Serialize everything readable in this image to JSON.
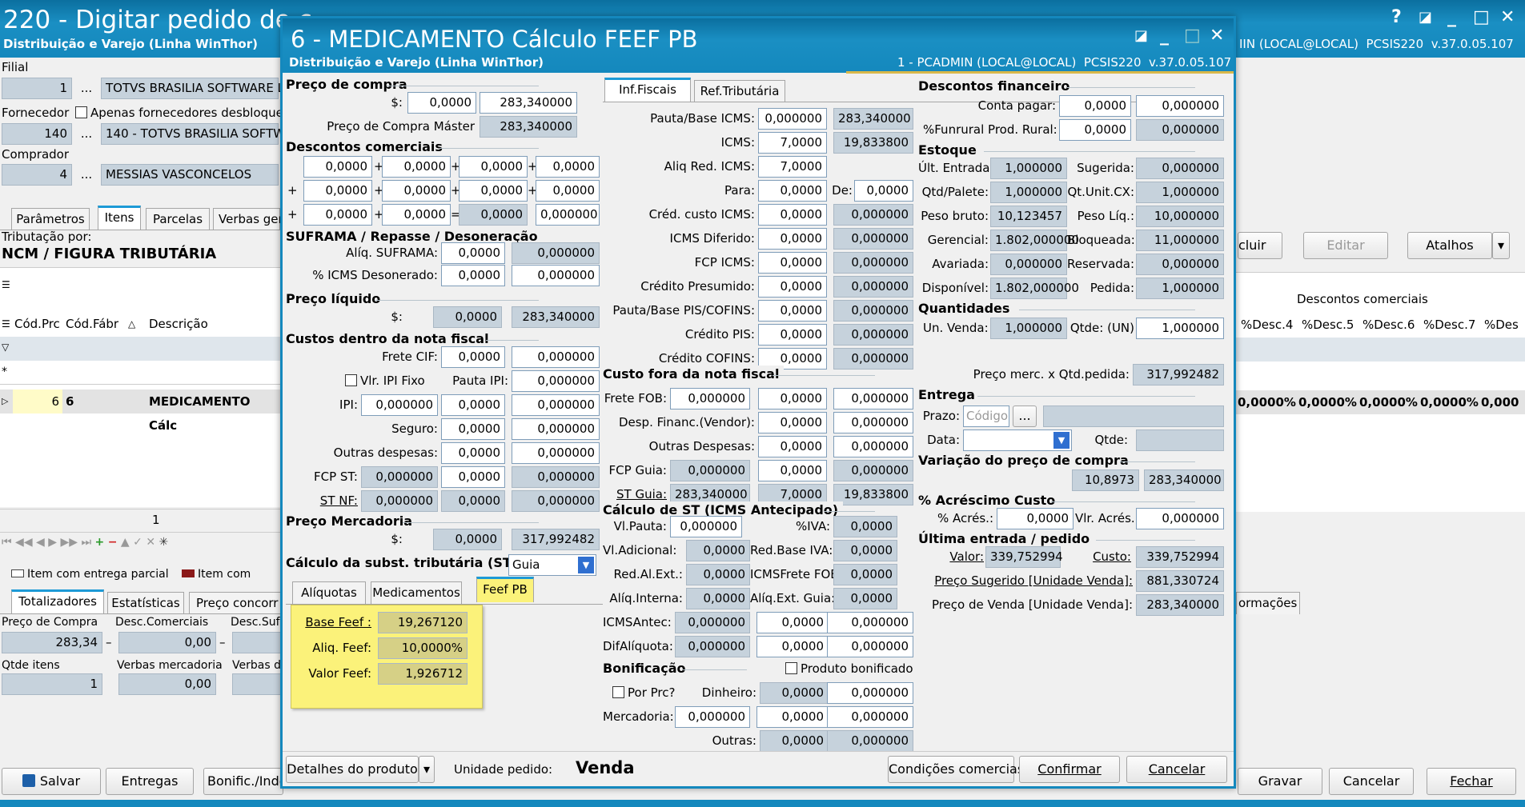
{
  "bg": {
    "title": "220 - Digitar pedido de c",
    "subtitle": "Distribuição e Varejo (Linha WinThor)",
    "user_info": "IIN (LOCAL@LOCAL)",
    "routine": "PCSIS220",
    "version": "v.37.0.05.107",
    "filial_label": "Filial",
    "filial_code": "1",
    "filial_name": "TOTVS BRASILIA SOFTWARE L",
    "fornecedor_label": "Fornecedor",
    "apenas_label": "Apenas fornecedores desbloque",
    "fornecedor_code": "140",
    "fornecedor_name": "140 - TOTVS BRASILIA SOFTW",
    "comprador_label": "Comprador",
    "comprador_code": "4",
    "comprador_name": "MESSIAS VASCONCELOS",
    "dots": "...",
    "tabs": [
      "Parâmetros",
      "Itens",
      "Parcelas",
      "Verbas ger"
    ],
    "tributacao_label": "Tributação por:",
    "tributacao_value": "NCM / FIGURA TRIBUTÁRIA",
    "col_headers": [
      "Cód.Prc",
      "Cód.Fábr",
      "Descrição"
    ],
    "row_code": "6",
    "row_code2": "6",
    "row_desc": "MEDICAMENTO Cálc",
    "page_number": "1",
    "legend1": "Item com entrega parcial",
    "legend2": "Item com",
    "bottom_tabs": [
      "Totalizadores",
      "Estatísticas",
      "Preço concorr"
    ],
    "tot_labels": [
      "Preço de Compra",
      "Desc.Comerciais",
      "Desc.Suf"
    ],
    "tot_preco": "283,34",
    "tot_desc": "0,00",
    "qtde_itens_label": "Qtde itens",
    "verbas_merc_label": "Verbas mercadoria",
    "verbas_label": "Verbas d",
    "qtde_itens": "1",
    "verbas_merc": "0,00",
    "btn_salvar": "Salvar",
    "btn_entregas": "Entregas",
    "btn_bonific": "Bonific./Inde",
    "btn_incluir": "cluir",
    "btn_editar": "Editar",
    "btn_atalhos": "Atalhos",
    "descontos_header": "Descontos comerciais",
    "desc_cols": [
      "%Desc.4",
      "%Desc.5",
      "%Desc.6",
      "%Desc.7",
      "%Des"
    ],
    "desc_vals": [
      "0,0000%",
      "0,0000%",
      "0,0000%",
      "0,0000%",
      "0,000"
    ],
    "info_tab": "ormações",
    "btn_gravar": "Gravar",
    "btn_cancelar": "Cancelar",
    "btn_fechar": "Fechar"
  },
  "modal": {
    "title": "6 - MEDICAMENTO Cálculo FEEF PB",
    "subtitle": "Distribuição e Varejo (Linha WinThor)",
    "user_info": "1 - PCADMIN (LOCAL@LOCAL)",
    "routine": "PCSIS220",
    "version": "v.37.0.05.107"
  },
  "left": {
    "preco_compra_title": "Preço de compra",
    "dollar": "$:",
    "pc_val1": "0,0000",
    "pc_val2": "283,340000",
    "pc_master_label": "Preço de Compra Máster",
    "pc_master": "283,340000",
    "desc_com_title": "Descontos comerciais",
    "desc_rows": [
      [
        "0,0000",
        "0,0000",
        "0,0000",
        "0,0000"
      ],
      [
        "0,0000",
        "0,0000",
        "0,0000",
        "0,0000"
      ],
      [
        "0,0000",
        "0,0000",
        "0,0000",
        "0,000000"
      ]
    ],
    "suframa_title": "SUFRAMA / Repasse / Desoneração",
    "aliq_suframa_label": "Alíq. SUFRAMA:",
    "aliq_suframa1": "0,0000",
    "aliq_suframa2": "0,000000",
    "icms_deson_label": "% ICMS Desonerado:",
    "icms_deson1": "0,0000",
    "icms_deson2": "0,000000",
    "preco_liq_title": "Preço líquido",
    "pl_val1": "0,0000",
    "pl_val2": "283,340000",
    "custos_title": "Custos dentro da nota fiscal",
    "frete_cif_label": "Frete CIF:",
    "frete_cif1": "0,0000",
    "frete_cif2": "0,000000",
    "ipi_fixo_label": "Vlr. IPI Fixo",
    "pauta_ipi_label": "Pauta IPI:",
    "pauta_ipi": "0,000000",
    "ipi_label": "IPI:",
    "ipi1": "0,000000",
    "ipi2": "0,0000",
    "ipi3": "0,000000",
    "seguro_label": "Seguro:",
    "seguro1": "0,0000",
    "seguro2": "0,000000",
    "outras_desp_label": "Outras despesas:",
    "outras_desp1": "0,0000",
    "outras_desp2": "0,000000",
    "fcp_st_label": "FCP ST:",
    "fcp_st1": "0,000000",
    "fcp_st2": "0,0000",
    "fcp_st3": "0,000000",
    "st_nf_label": "ST NF:",
    "st_nf1": "0,000000",
    "st_nf2": "0,0000",
    "st_nf3": "0,000000",
    "preco_merc_title": "Preço Mercadoria",
    "pm_val1": "0,0000",
    "pm_val2": "317,992482",
    "calc_st_label": "Cálculo da subst. tributária (ST)",
    "calc_st_value": "Guia",
    "tabs": [
      "Alíquotas",
      "Medicamentos",
      "Feef PB"
    ],
    "base_feef_label": "Base Feef :",
    "base_feef": "19,267120",
    "aliq_feef_label": "Aliq. Feef:",
    "aliq_feef": "10,0000%",
    "valor_feef_label": "Valor Feef:",
    "valor_feef": "1,926712"
  },
  "mid": {
    "tabs": [
      "Inf.Fiscais",
      "Ref.Tributária"
    ],
    "rows": [
      {
        "label": "Pauta/Base ICMS:",
        "v1": "0,000000",
        "v2": "283,340000"
      },
      {
        "label": "ICMS:",
        "v1": "7,0000",
        "v2": "19,833800"
      },
      {
        "label": "Aliq Red. ICMS:",
        "v1": "7,0000"
      },
      {
        "label": "Para:",
        "v1": "0,0000",
        "de_label": "De:",
        "v2": "0,0000"
      },
      {
        "label": "Créd. custo ICMS:",
        "v1": "0,0000",
        "v2": "0,000000"
      },
      {
        "label": "ICMS Diferido:",
        "v1": "0,0000",
        "v2": "0,000000"
      },
      {
        "label": "FCP ICMS:",
        "v1": "0,0000",
        "v2": "0,000000"
      },
      {
        "label": "Crédito Presumido:",
        "v1": "0,0000",
        "v2": "0,000000"
      },
      {
        "label": "Pauta/Base PIS/COFINS:",
        "v1": "0,0000",
        "v2": "0,000000"
      },
      {
        "label": "Crédito PIS:",
        "v1": "0,0000",
        "v2": "0,000000"
      },
      {
        "label": "Crédito COFINS:",
        "v1": "0,0000",
        "v2": "0,000000"
      }
    ],
    "custo_fora_title": "Custo fora da nota fiscal",
    "fora_rows": [
      {
        "label": "Frete FOB:",
        "v0": "0,000000",
        "v1": "0,0000",
        "v2": "0,000000"
      },
      {
        "label": "Desp. Financ.(Vendor):",
        "v1": "0,0000",
        "v2": "0,000000"
      },
      {
        "label": "Outras Despesas:",
        "v1": "0,0000",
        "v2": "0,000000"
      },
      {
        "label": "FCP Guia:",
        "v0": "0,000000",
        "v1": "0,0000",
        "v2": "0,000000"
      },
      {
        "label": "ST Guia:",
        "v0": "283,340000",
        "v1": "7,0000",
        "v2": "19,833800"
      }
    ],
    "calc_st_title": "Cálculo de ST (ICMS Antecipado)",
    "vl_pauta_label": "Vl.Pauta:",
    "vl_pauta": "0,000000",
    "pct_iva_label": "%IVA:",
    "pct_iva": "0,0000",
    "vl_adic_label": "Vl.Adicional:",
    "vl_adic": "0,0000",
    "red_base_iva_label": "Red.Base IVA:",
    "red_base_iva": "0,0000",
    "red_al_ext_label": "Red.Al.Ext.:",
    "red_al_ext": "0,0000",
    "icms_frete_fob_label": "ICMSFrete FOB:",
    "icms_frete_fob": "0,0000",
    "aliq_interna_label": "Alíq.Interna:",
    "aliq_interna": "0,0000",
    "aliq_ext_guia_label": "Alíq.Ext. Guia:",
    "aliq_ext_guia": "0,0000",
    "icms_antec_label": "ICMSAntec:",
    "icms_antec": [
      "0,000000",
      "0,0000",
      "0,000000"
    ],
    "dif_aliq_label": "DifAlíquota:",
    "dif_aliq": [
      "0,000000",
      "0,0000",
      "0,000000"
    ],
    "bonif_title": "Bonificação",
    "prod_bonif_label": "Produto bonificado",
    "por_prc_label": "Por Prc?",
    "dinheiro_label": "Dinheiro:",
    "dinheiro": [
      "0,0000",
      "0,000000"
    ],
    "mercadoria_label": "Mercadoria:",
    "mercadoria": [
      "0,000000",
      "0,0000",
      "0,000000"
    ],
    "outras_label": "Outras:",
    "outras": [
      "0,0000",
      "0,000000"
    ]
  },
  "right": {
    "desc_fin_title": "Descontos financeiro",
    "conta_pagar_label": "Conta pagar:",
    "conta_pagar1": "0,0000",
    "conta_pagar2": "0,000000",
    "funrural_label": "%Funrural Prod. Rural:",
    "funrural1": "0,0000",
    "funrural2": "0,000000",
    "estoque_title": "Estoque",
    "est_rows": [
      {
        "l1": "Últ. Entrada:",
        "v1": "1,000000",
        "l2": "Sugerida:",
        "v2": "0,000000"
      },
      {
        "l1": "Qtd/Palete:",
        "v1": "1,000000",
        "l2": "Qt.Unit.CX:",
        "v2": "1,000000"
      },
      {
        "l1": "Peso bruto:",
        "v1": "10,123457",
        "l2": "Peso Líq.:",
        "v2": "10,000000"
      },
      {
        "l1": "Gerencial:",
        "v1": "1.802,000000",
        "l2": "Bloqueada:",
        "v2": "11,000000"
      },
      {
        "l1": "Avariada:",
        "v1": "0,000000",
        "l2": "Reservada:",
        "v2": "0,000000"
      },
      {
        "l1": "Disponível:",
        "v1": "1.802,000000",
        "l2": "Pedida:",
        "v2": "1,000000"
      }
    ],
    "quant_title": "Quantidades",
    "un_venda_label": "Un. Venda:",
    "un_venda": "1,000000",
    "qtde_un_label": "Qtde: (UN)",
    "qtde_un": "1,000000",
    "preco_merc_label": "Preço merc. x Qtd.pedida:",
    "preco_merc": "317,992482",
    "entrega_title": "Entrega",
    "prazo_label": "Prazo:",
    "prazo_placeholder": "Código",
    "prazo_dots": "...",
    "data_label": "Data:",
    "qtde_label": "Qtde:",
    "variacao_title": "Variação do preço de compra",
    "variacao1": "10,8973",
    "variacao2": "283,340000",
    "acresc_title": "% Acréscimo Custo",
    "pct_acres_label": "% Acrés.:",
    "pct_acres": "0,0000",
    "vlr_acres_label": "Vlr. Acrés.:",
    "vlr_acres": "0,000000",
    "ultima_title": "Última entrada / pedido",
    "valor_label": "Valor:",
    "valor": "339,752994",
    "custo_label": "Custo:",
    "custo": "339,752994",
    "preco_sug_label": "Preço Sugerido [Unidade Venda]:",
    "preco_sug": "881,330724",
    "preco_venda_label": "Preço de Venda [Unidade Venda]:",
    "preco_venda": "283,340000"
  },
  "footer": {
    "detalhes": "Detalhes do produto",
    "unidade_label": "Unidade pedido:",
    "unidade_value": "Venda",
    "condicoes": "Condições comercias",
    "confirmar": "Confirmar",
    "cancelar": "Cancelar"
  }
}
